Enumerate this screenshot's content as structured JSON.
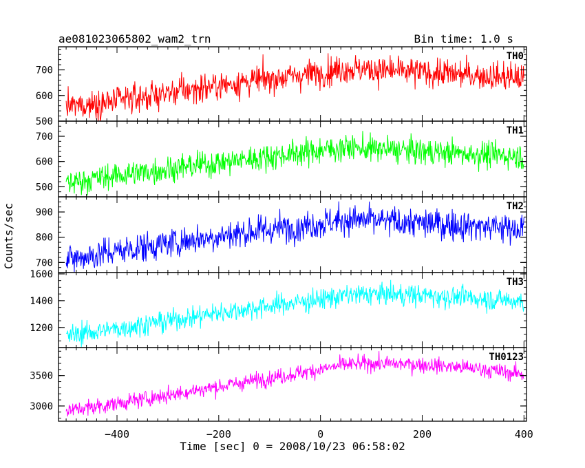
{
  "chart_data": {
    "type": "line",
    "title": "ae081023065802_wam2_trn",
    "bin_time_label": "Bin time: 1.0 s",
    "xlabel": "Time [sec] 0 = 2008/10/23 06:58:02",
    "ylabel": "Counts/sec",
    "xlim": [
      -515,
      405
    ],
    "x_ticks": [
      -400,
      -200,
      0,
      200,
      400
    ],
    "x_tick_labels": [
      "−400",
      "−200",
      "0",
      "200",
      "400"
    ],
    "x_data_range": [
      -500,
      400
    ],
    "bin_time": 1.0,
    "grid": false,
    "panels": [
      {
        "name": "TH0",
        "color": "#ff0000",
        "ylim": [
          500,
          790
        ],
        "y_ticks": [
          500,
          600,
          700
        ],
        "y_tick_labels": [
          "500",
          "600",
          "700"
        ],
        "y_minor_step": 20,
        "trend_x": [
          -500,
          -400,
          -300,
          -200,
          -100,
          0,
          50,
          100,
          200,
          300,
          400
        ],
        "trend_y": [
          555,
          578,
          610,
          640,
          665,
          690,
          705,
          700,
          690,
          680,
          668
        ],
        "noise_sd": 28
      },
      {
        "name": "TH1",
        "color": "#00ff00",
        "ylim": [
          460,
          760
        ],
        "y_ticks": [
          500,
          600,
          700
        ],
        "y_tick_labels": [
          "500",
          "600",
          "700"
        ],
        "y_minor_step": 20,
        "trend_x": [
          -500,
          -400,
          -300,
          -200,
          -100,
          0,
          50,
          100,
          200,
          300,
          400
        ],
        "trend_y": [
          515,
          545,
          570,
          595,
          620,
          645,
          655,
          650,
          640,
          630,
          620
        ],
        "noise_sd": 26
      },
      {
        "name": "TH2",
        "color": "#0000ff",
        "ylim": [
          660,
          960
        ],
        "y_ticks": [
          700,
          800,
          900
        ],
        "y_tick_labels": [
          "700",
          "800",
          "900"
        ],
        "y_minor_step": 20,
        "trend_x": [
          -500,
          -400,
          -300,
          -200,
          -100,
          0,
          50,
          100,
          200,
          300,
          400
        ],
        "trend_y": [
          710,
          745,
          775,
          805,
          830,
          855,
          870,
          865,
          855,
          845,
          835
        ],
        "noise_sd": 30
      },
      {
        "name": "TH3",
        "color": "#00ffff",
        "ylim": [
          1050,
          1610
        ],
        "y_ticks": [
          1200,
          1400,
          1600
        ],
        "y_tick_labels": [
          "1200",
          "1400",
          "1600"
        ],
        "y_minor_step": 50,
        "trend_x": [
          -500,
          -400,
          -300,
          -200,
          -100,
          0,
          50,
          100,
          200,
          300,
          400
        ],
        "trend_y": [
          1140,
          1190,
          1250,
          1310,
          1360,
          1410,
          1440,
          1450,
          1440,
          1420,
          1395
        ],
        "noise_sd": 40
      },
      {
        "name": "TH0123",
        "color": "#ff00ff",
        "ylim": [
          2750,
          3960
        ],
        "y_ticks": [
          3000,
          3500
        ],
        "y_tick_labels": [
          "3000",
          "3500"
        ],
        "y_minor_step": 100,
        "trend_x": [
          -500,
          -400,
          -300,
          -200,
          -100,
          0,
          50,
          100,
          200,
          300,
          400
        ],
        "trend_y": [
          2920,
          3040,
          3180,
          3320,
          3460,
          3600,
          3680,
          3700,
          3680,
          3620,
          3520
        ],
        "noise_sd": 65
      }
    ]
  }
}
